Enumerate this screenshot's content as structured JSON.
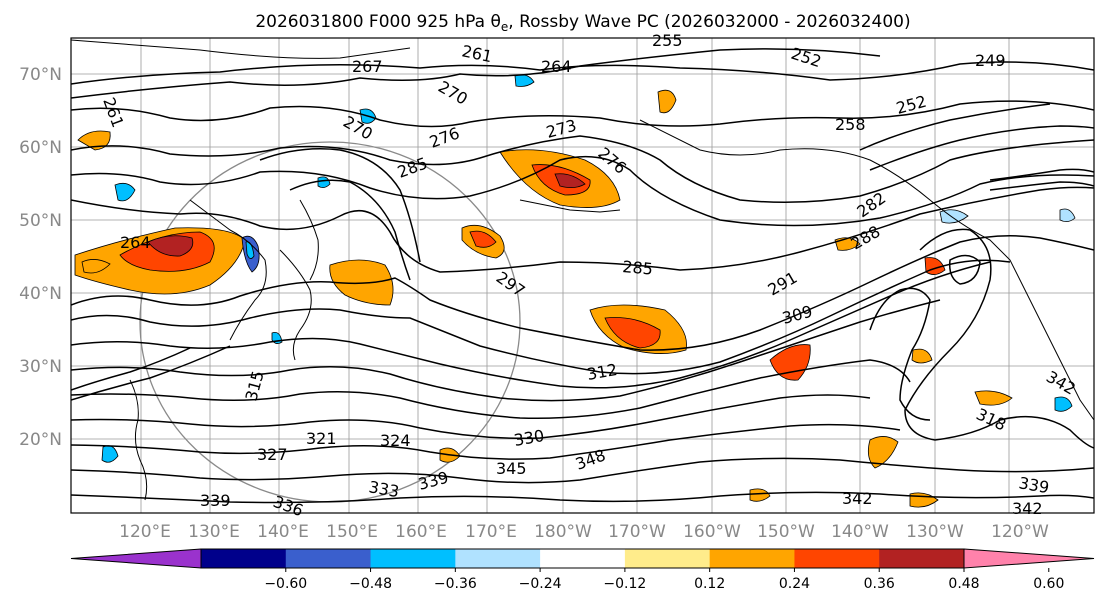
{
  "title": "2026031800 F000 925 hPa θe, Rossby Wave PC (2026032000 - 2026032400)",
  "lat_labels": [
    "70°N",
    "60°N",
    "50°N",
    "40°N",
    "30°N",
    "20°N"
  ],
  "lon_labels": [
    "120°E",
    "130°E",
    "140°E",
    "150°E",
    "160°E",
    "170°E",
    "180°W",
    "170°W",
    "160°W",
    "150°W",
    "140°W",
    "130°W",
    "120°W"
  ],
  "colorbar": {
    "colors": [
      "#9a32cd",
      "#00008b",
      "#3a5fcd",
      "#00bfff",
      "#b0e2ff",
      "#ffffff",
      "#ffec8b",
      "#ffa500",
      "#ff4500",
      "#b22222",
      "#ff82ab"
    ],
    "tick_labels": [
      "−0.60",
      "−0.48",
      "−0.36",
      "−0.24",
      "−0.12",
      "0.12",
      "0.24",
      "0.36",
      "0.48",
      "0.60"
    ]
  },
  "contour_labels": [
    "255",
    "252",
    "249",
    "261",
    "264",
    "267",
    "270",
    "258",
    "252",
    "261",
    "273",
    "276",
    "270",
    "276",
    "285",
    "264",
    "282",
    "288",
    "285",
    "297",
    "291",
    "309",
    "312",
    "315",
    "318",
    "321",
    "324",
    "327",
    "330",
    "342",
    "345",
    "348",
    "336",
    "339",
    "333",
    "339",
    "342",
    "339",
    "342"
  ]
}
